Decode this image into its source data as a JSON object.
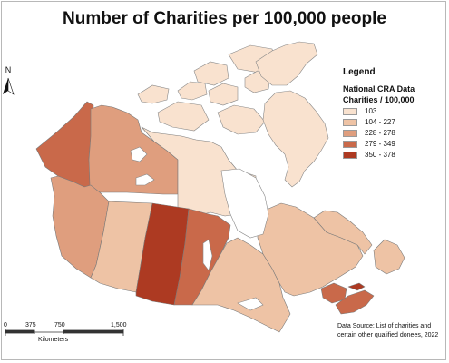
{
  "title": "Number of Charities per 100,000 people",
  "north_label": "N",
  "legend": {
    "title": "Legend",
    "subtitle1": "National CRA Data",
    "subtitle2": "Charities / 100,000",
    "classes": [
      {
        "label": "103",
        "color": "#f9e2cf"
      },
      {
        "label": "104 - 227",
        "color": "#eec3a5"
      },
      {
        "label": "228 - 278",
        "color": "#df9e7e"
      },
      {
        "label": "279 - 349",
        "color": "#c9694a"
      },
      {
        "label": "350 - 378",
        "color": "#ad3a22"
      }
    ]
  },
  "regions": [
    {
      "name": "Yukon",
      "class": 3
    },
    {
      "name": "Northwest Territories",
      "class": 2
    },
    {
      "name": "Nunavut",
      "class": 0
    },
    {
      "name": "British Columbia",
      "class": 2
    },
    {
      "name": "Alberta",
      "class": 1
    },
    {
      "name": "Saskatchewan",
      "class": 4
    },
    {
      "name": "Manitoba",
      "class": 3
    },
    {
      "name": "Ontario",
      "class": 1
    },
    {
      "name": "Quebec",
      "class": 1
    },
    {
      "name": "Newfoundland and Labrador",
      "class": 1
    },
    {
      "name": "Nova Scotia",
      "class": 3
    },
    {
      "name": "New Brunswick",
      "class": 3
    },
    {
      "name": "Prince Edward Island",
      "class": 4
    }
  ],
  "scale_bar": {
    "ticks": [
      "0",
      "375",
      "750",
      "1,500"
    ],
    "unit": "Kilometers"
  },
  "source": {
    "line1": "Data Source: List of charities and",
    "line2": "certain other qualified donees, 2022"
  }
}
